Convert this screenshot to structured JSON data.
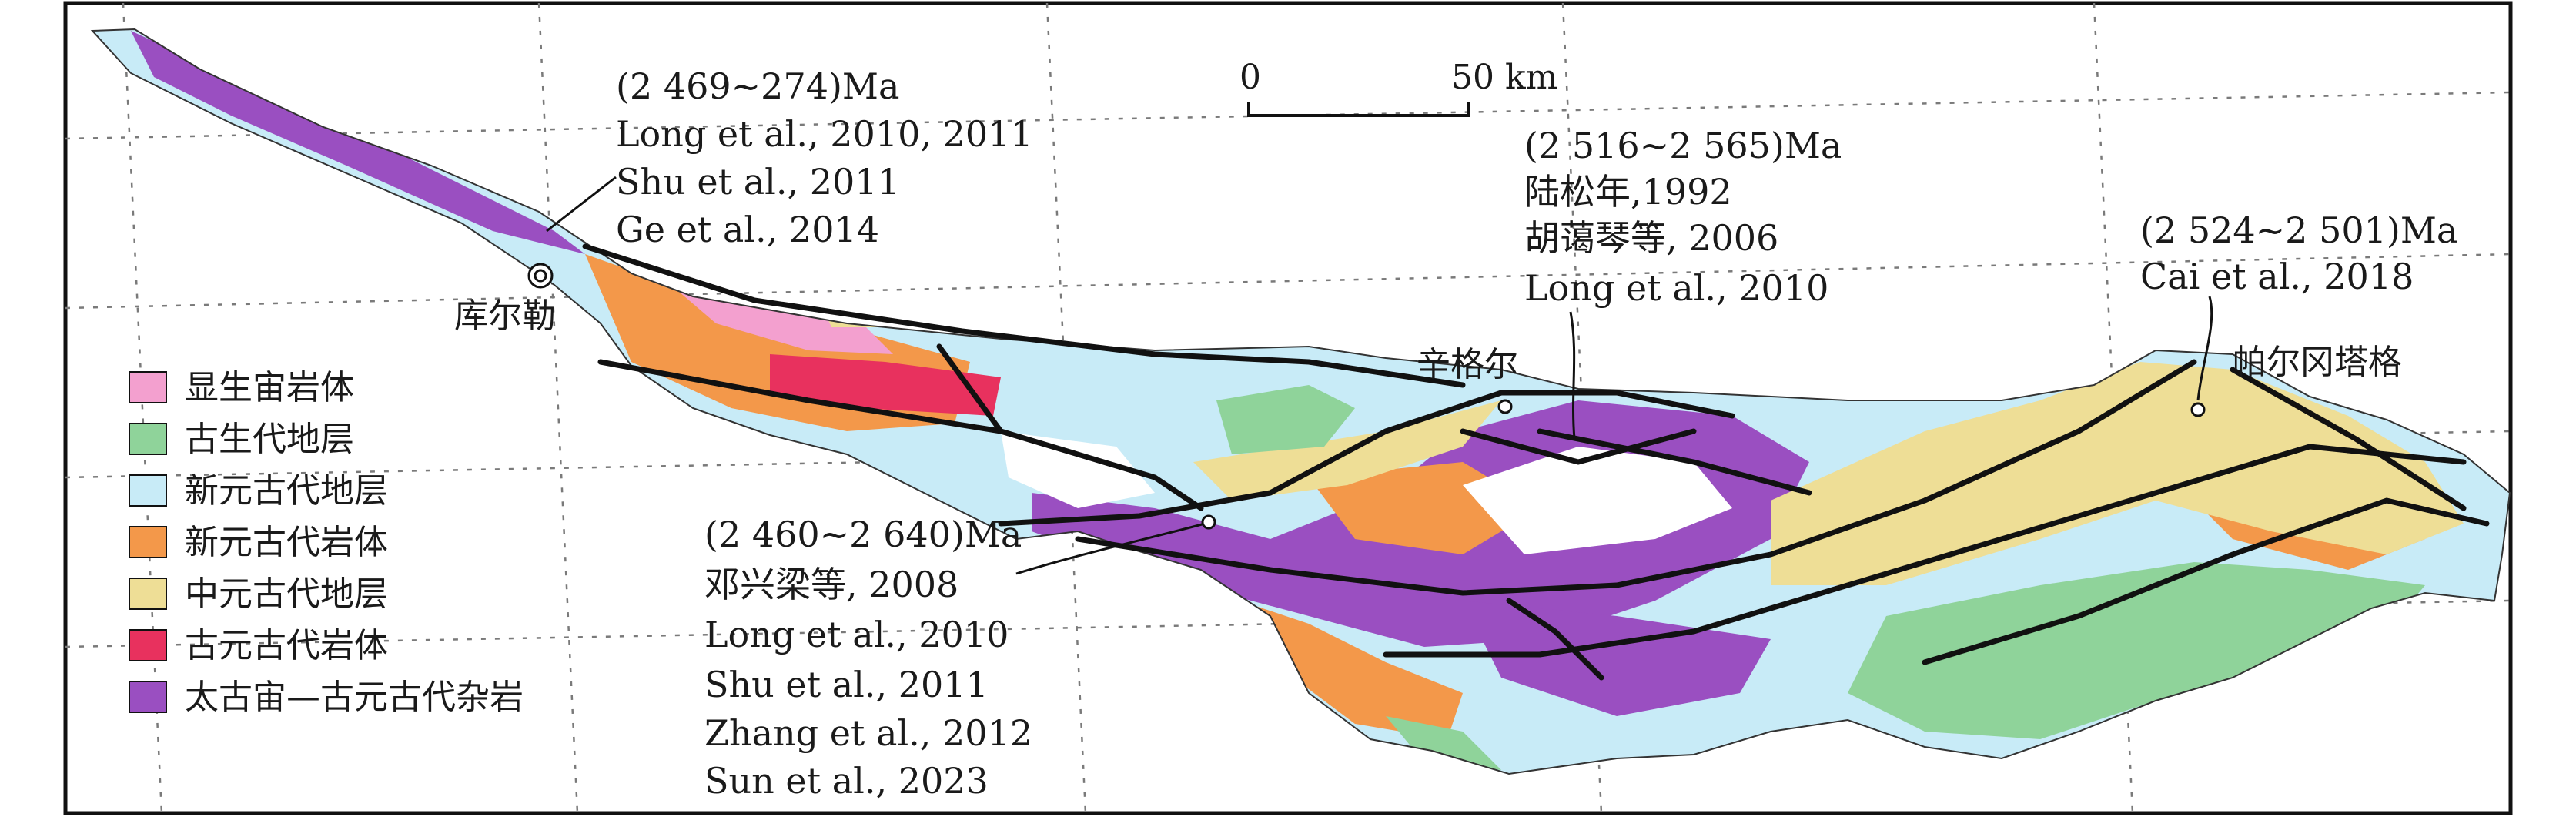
{
  "colors": {
    "phanerozoic_intrusion": "#f3a0cf",
    "paleozoic_strata": "#8fd39a",
    "neoproterozoic_strata": "#c8ebf7",
    "neoproterozoic_intrusion": "#f3984a",
    "mesoproterozoic_strata": "#eede96",
    "paleoproterozoic_intrusion": "#e8315e",
    "archean_complex": "#9a4fc1"
  },
  "legend": [
    {
      "label": "显生宙岩体",
      "color_key": "phanerozoic_intrusion"
    },
    {
      "label": "古生代地层",
      "color_key": "paleozoic_strata"
    },
    {
      "label": "新元古代地层",
      "color_key": "neoproterozoic_strata"
    },
    {
      "label": "新元古代岩体",
      "color_key": "neoproterozoic_intrusion"
    },
    {
      "label": "中元古代地层",
      "color_key": "mesoproterozoic_strata"
    },
    {
      "label": "古元古代岩体",
      "color_key": "paleoproterozoic_intrusion"
    },
    {
      "label": "太古宙—古元古代杂岩",
      "color_key": "archean_complex"
    }
  ],
  "scale_bar": {
    "start": "0",
    "end": "50 km"
  },
  "places": {
    "korla": "库尔勒",
    "xinger": "辛格尔",
    "paergangtage": "帕尔冈塔格"
  },
  "annotations": {
    "korla": {
      "age": "(2 469~274)Ma",
      "refs": [
        "Long et al., 2010, 2011",
        "Shu et al., 2011",
        "Ge et al., 2014"
      ]
    },
    "xinger": {
      "age": "(2 516~2 565)Ma",
      "refs": [
        "陆松年,1992",
        "胡蔼琴等, 2006",
        "Long et al., 2010"
      ]
    },
    "paergangtage": {
      "age": "(2 524~2 501)Ma",
      "refs": [
        "Cai et al., 2018"
      ]
    },
    "south": {
      "age": "(2 460~2 640)Ma",
      "refs": [
        "邓兴梁等, 2008",
        "Long et al., 2010",
        "Shu et al., 2011",
        "Zhang et al., 2012",
        "Sun et al., 2023"
      ]
    }
  }
}
